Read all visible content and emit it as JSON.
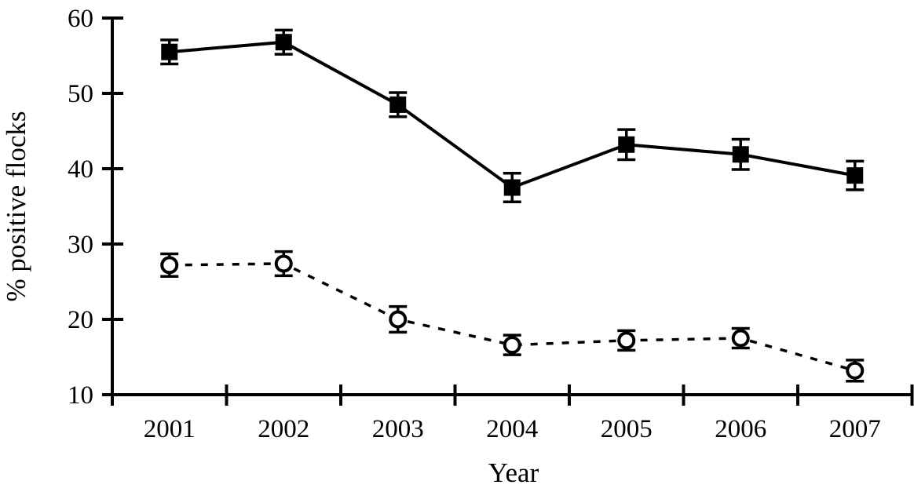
{
  "figure": {
    "background_color": "#ffffff",
    "ink_color": "#000000"
  },
  "chart_data": {
    "type": "line",
    "title": "",
    "xlabel": "Year",
    "ylabel": "% positive flocks",
    "categories": [
      "2001",
      "2002",
      "2003",
      "2004",
      "2005",
      "2006",
      "2007"
    ],
    "ylim": [
      10,
      60
    ],
    "yticks": [
      10,
      20,
      30,
      40,
      50,
      60
    ],
    "grid": false,
    "legend_position": "none",
    "x_tick_style": "ticks-between-category-labels",
    "error_bars_shown": true,
    "series": [
      {
        "name": "filled squares, solid line",
        "marker": "filled-square",
        "line_style": "solid",
        "color": "#000000",
        "values": [
          55.5,
          56.8,
          48.5,
          37.5,
          43.2,
          41.9,
          39.1
        ],
        "error_bars": [
          1.6,
          1.6,
          1.6,
          1.9,
          2.0,
          2.0,
          1.9
        ]
      },
      {
        "name": "open circles, dashed line",
        "marker": "open-circle",
        "line_style": "dashed",
        "color": "#000000",
        "values": [
          27.2,
          27.4,
          20.0,
          16.6,
          17.2,
          17.5,
          13.2
        ],
        "error_bars": [
          1.5,
          1.6,
          1.7,
          1.3,
          1.3,
          1.3,
          1.4
        ]
      }
    ]
  }
}
